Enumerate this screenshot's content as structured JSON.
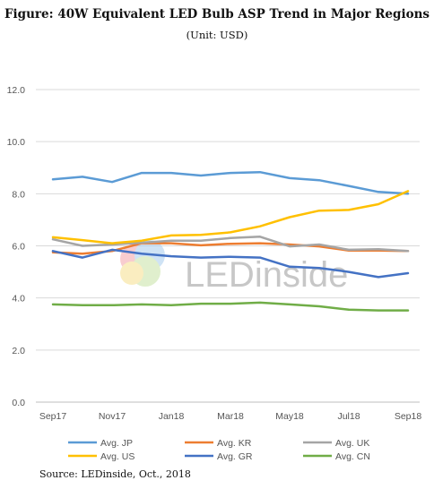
{
  "title": "Figure: 40W Equivalent LED Bulb ASP Trend in Major Regions",
  "subtitle": "(Unit: USD)",
  "source": "Source: LEDinside, Oct., 2018",
  "watermark": "LEDinside",
  "chart_data": {
    "type": "line",
    "ylim": [
      0,
      12
    ],
    "yticks": [
      "0.0",
      "2.0",
      "4.0",
      "6.0",
      "8.0",
      "10.0",
      "12.0"
    ],
    "x_labels": [
      "Sep17",
      "Nov17",
      "Jan18",
      "Mar18",
      "May18",
      "Jul18",
      "Sep18"
    ],
    "x_points": 13,
    "grid": true,
    "legend_position": "bottom",
    "series": [
      {
        "name": "Avg. JP",
        "color": "#5b9bd5",
        "values": [
          8.55,
          8.65,
          8.45,
          8.8,
          8.8,
          8.7,
          8.8,
          8.83,
          8.6,
          8.52,
          8.3,
          8.07,
          8.0
        ]
      },
      {
        "name": "Avg. KR",
        "color": "#ed7d31",
        "values": [
          5.75,
          5.7,
          5.8,
          6.1,
          6.1,
          6.02,
          6.08,
          6.1,
          6.05,
          5.98,
          5.82,
          5.82,
          5.8
        ]
      },
      {
        "name": "Avg. UK",
        "color": "#a5a5a5",
        "values": [
          6.25,
          6.0,
          6.05,
          6.12,
          6.2,
          6.2,
          6.3,
          6.35,
          5.98,
          6.05,
          5.85,
          5.87,
          5.8
        ]
      },
      {
        "name": "Avg. US",
        "color": "#ffc000",
        "values": [
          6.33,
          6.22,
          6.1,
          6.2,
          6.4,
          6.42,
          6.52,
          6.75,
          7.1,
          7.35,
          7.38,
          7.6,
          8.1
        ]
      },
      {
        "name": "Avg. GR",
        "color": "#4472c4",
        "values": [
          5.8,
          5.55,
          5.85,
          5.7,
          5.6,
          5.55,
          5.58,
          5.55,
          5.2,
          5.15,
          5.0,
          4.8,
          4.95
        ]
      },
      {
        "name": "Avg. CN",
        "color": "#70ad47",
        "values": [
          3.75,
          3.72,
          3.72,
          3.75,
          3.72,
          3.78,
          3.78,
          3.82,
          3.75,
          3.68,
          3.55,
          3.52,
          3.52
        ]
      }
    ]
  }
}
